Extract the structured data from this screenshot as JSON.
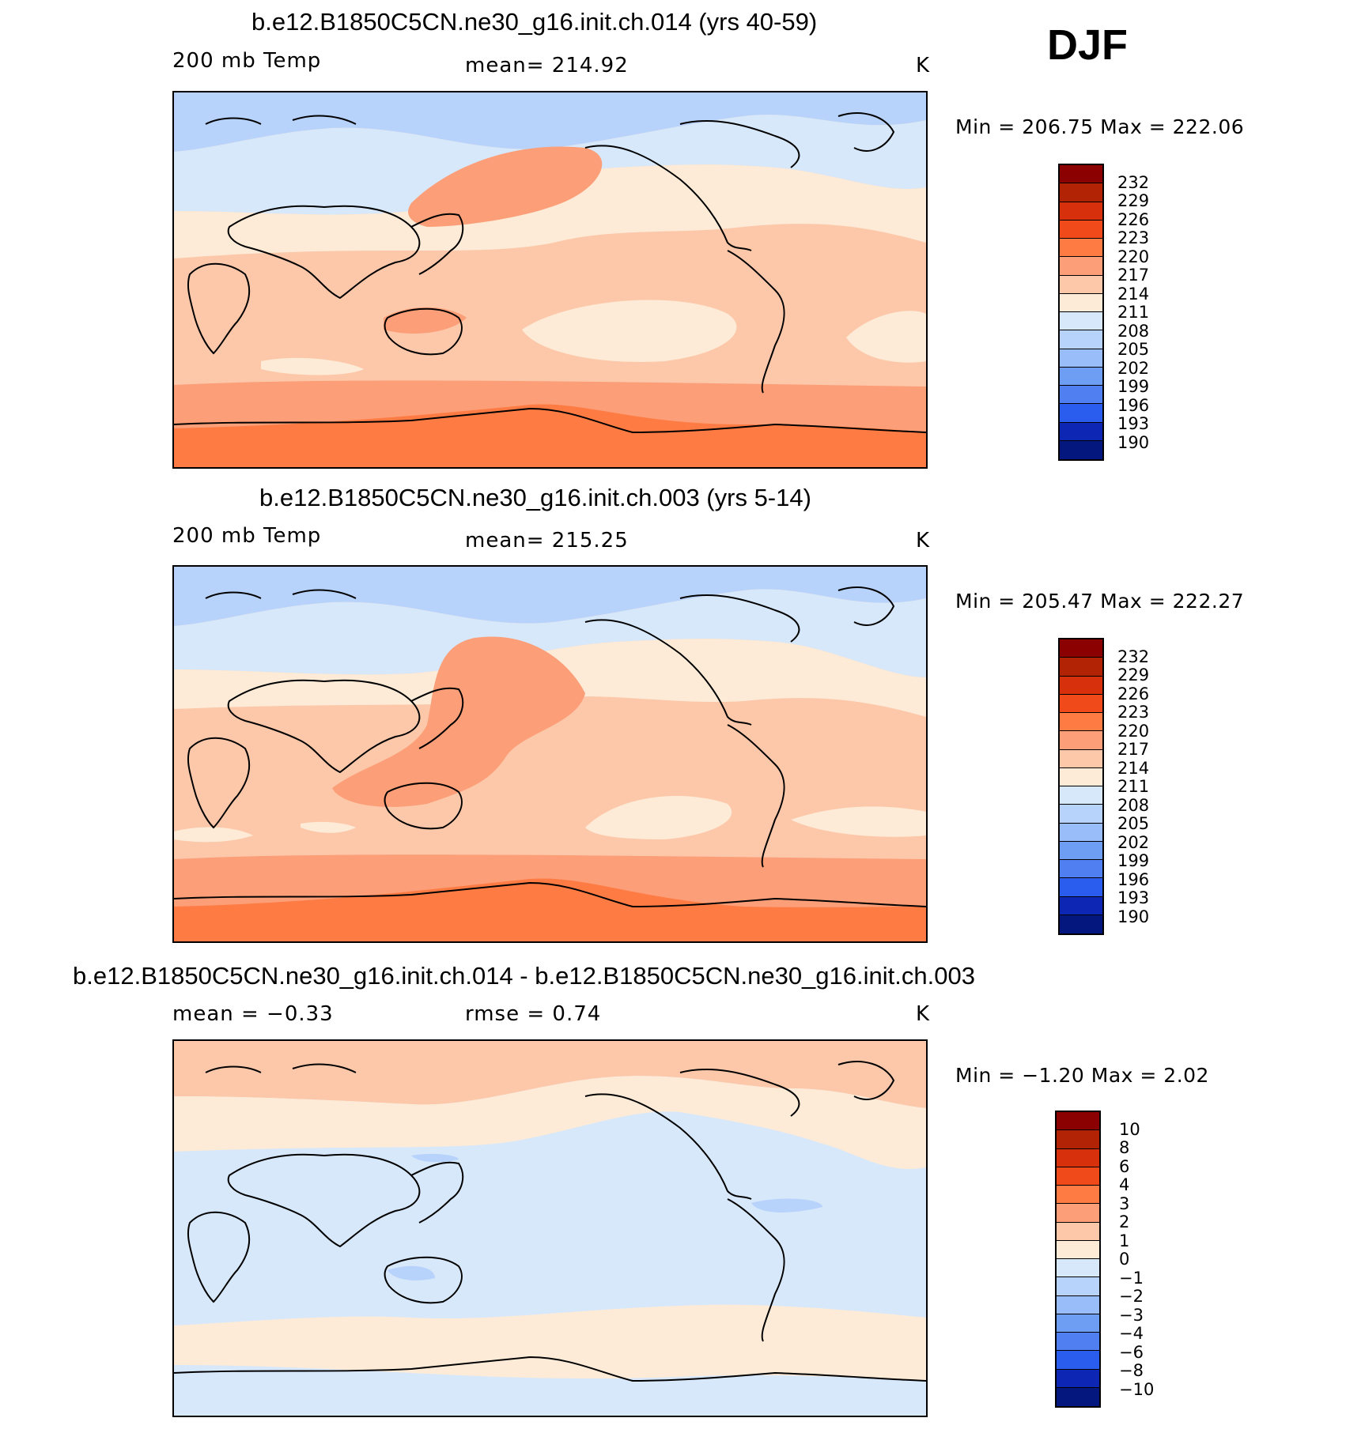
{
  "season": "DJF",
  "colors": {
    "temp": [
      "#8b0000",
      "#b22204",
      "#d7300d",
      "#f04a1a",
      "#ff7b44",
      "#fc9f78",
      "#fdc8aa",
      "#fdebd7",
      "#d7e8fb",
      "#b7d3fb",
      "#98bdf8",
      "#6e9df4",
      "#4f7ff0",
      "#2a5ded",
      "#1639dc",
      "#0d27b4",
      "#03177f"
    ],
    "diff": [
      "#8b0000",
      "#b22204",
      "#d7300d",
      "#f04a1a",
      "#ff7b44",
      "#fc9f78",
      "#fdc8aa",
      "#fdebd7",
      "#d7e8fb",
      "#b7d3fb",
      "#98bdf8",
      "#6e9df4",
      "#4f7ff0",
      "#2a5ded",
      "#1639dc",
      "#0d27b4",
      "#03177f"
    ]
  },
  "panels": [
    {
      "title": "b.e12.B1850C5CN.ne30_g16.init.ch.014 (yrs 40-59)",
      "left_label": "200 mb Temp",
      "center_label": "mean=  214.92",
      "units": "K",
      "minmax": "Min  =  206.75  Max  =  222.06",
      "colorbar_labels": [
        "232",
        "229",
        "226",
        "223",
        "220",
        "217",
        "214",
        "211",
        "208",
        "205",
        "202",
        "199",
        "196",
        "193",
        "190"
      ],
      "map_icon": "world-map-temperature-field"
    },
    {
      "title": "b.e12.B1850C5CN.ne30_g16.init.ch.003 (yrs 5-14)",
      "left_label": "200 mb Temp",
      "center_label": "mean=  215.25",
      "units": "K",
      "minmax": "Min  =  205.47  Max  =  222.27",
      "colorbar_labels": [
        "232",
        "229",
        "226",
        "223",
        "220",
        "217",
        "214",
        "211",
        "208",
        "205",
        "202",
        "199",
        "196",
        "193",
        "190"
      ],
      "map_icon": "world-map-temperature-field"
    },
    {
      "title": "b.e12.B1850C5CN.ne30_g16.init.ch.014 - b.e12.B1850C5CN.ne30_g16.init.ch.003",
      "left_label": "mean  =     −0.33",
      "center_label": "rmse  =     0.74",
      "units": "K",
      "minmax": "Min  =    −1.20  Max  =     2.02",
      "colorbar_labels": [
        "10",
        "8",
        "6",
        "4",
        "3",
        "2",
        "1",
        "0",
        "−1",
        "−2",
        "−3",
        "−4",
        "−6",
        "−8",
        "−10"
      ],
      "map_icon": "world-map-difference-field"
    }
  ]
}
